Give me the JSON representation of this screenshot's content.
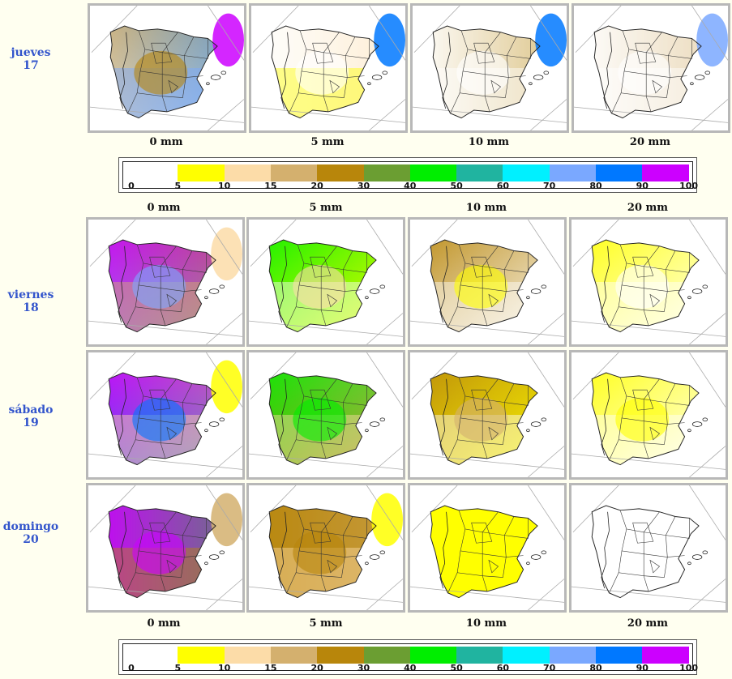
{
  "colors": {
    "scale": [
      "#ffffff",
      "#ffff00",
      "#fcdca8",
      "#d4b06e",
      "#b8860b",
      "#6b9e32",
      "#00ee00",
      "#20b4a0",
      "#00f0ff",
      "#7aa8ff",
      "#0078ff",
      "#cc00ff"
    ],
    "panel_border": "#b8b8b8",
    "day_text": "#3355cc",
    "page_bg": "#fffff0"
  },
  "legend": {
    "ticks": [
      "0",
      "5",
      "10",
      "15",
      "20",
      "30",
      "40",
      "50",
      "60",
      "70",
      "80",
      "90",
      "100"
    ]
  },
  "thresholds": [
    "0 mm",
    "5 mm",
    "10 mm",
    "20 mm"
  ],
  "days": [
    {
      "name": "jueves",
      "num": "17"
    },
    {
      "name": "viernes",
      "num": "18"
    },
    {
      "name": "sábado",
      "num": "19"
    },
    {
      "name": "domingo",
      "num": "20"
    }
  ],
  "map_levels": [
    [
      {
        "sw": 0,
        "nw": 3,
        "ne": 10,
        "se": 9,
        "in": 4,
        "east_sea": 11
      },
      {
        "sw": 0,
        "nw": 0,
        "ne": 2,
        "se": 1,
        "in": 0,
        "east_sea": 10
      },
      {
        "sw": 0,
        "nw": 0,
        "ne": 4,
        "se": 0,
        "in": 0,
        "east_sea": 10
      },
      {
        "sw": 0,
        "nw": 0,
        "ne": 3,
        "se": 0,
        "in": 0,
        "east_sea": 9
      }
    ],
    [
      {
        "sw": 9,
        "nw": 11,
        "ne": 4,
        "se": 3,
        "in": 9,
        "east_sea": 2
      },
      {
        "sw": 1,
        "nw": 6,
        "ne": 1,
        "se": 0,
        "in": 2,
        "east_sea": 0
      },
      {
        "sw": 0,
        "nw": 4,
        "ne": 0,
        "se": 0,
        "in": 1,
        "east_sea": 0
      },
      {
        "sw": 0,
        "nw": 1,
        "ne": 0,
        "se": 0,
        "in": 0,
        "east_sea": 0
      }
    ],
    [
      {
        "sw": 10,
        "nw": 11,
        "ne": 3,
        "se": 2,
        "in": 10,
        "east_sea": 1
      },
      {
        "sw": 4,
        "nw": 6,
        "ne": 3,
        "se": 2,
        "in": 6,
        "east_sea": 0
      },
      {
        "sw": 1,
        "nw": 4,
        "ne": 1,
        "se": 0,
        "in": 3,
        "east_sea": 0
      },
      {
        "sw": 0,
        "nw": 1,
        "ne": 0,
        "se": 0,
        "in": 1,
        "east_sea": 0
      }
    ],
    [
      {
        "sw": 11,
        "nw": 11,
        "ne": 6,
        "se": 4,
        "in": 11,
        "east_sea": 3
      },
      {
        "sw": 4,
        "nw": 4,
        "ne": 3,
        "se": 2,
        "in": 4,
        "east_sea": 1
      },
      {
        "sw": 1,
        "nw": 1,
        "ne": 1,
        "se": 1,
        "in": 1,
        "east_sea": 0
      },
      {
        "sw": 0,
        "nw": 0,
        "ne": 0,
        "se": 0,
        "in": 0,
        "east_sea": 0
      }
    ]
  ]
}
